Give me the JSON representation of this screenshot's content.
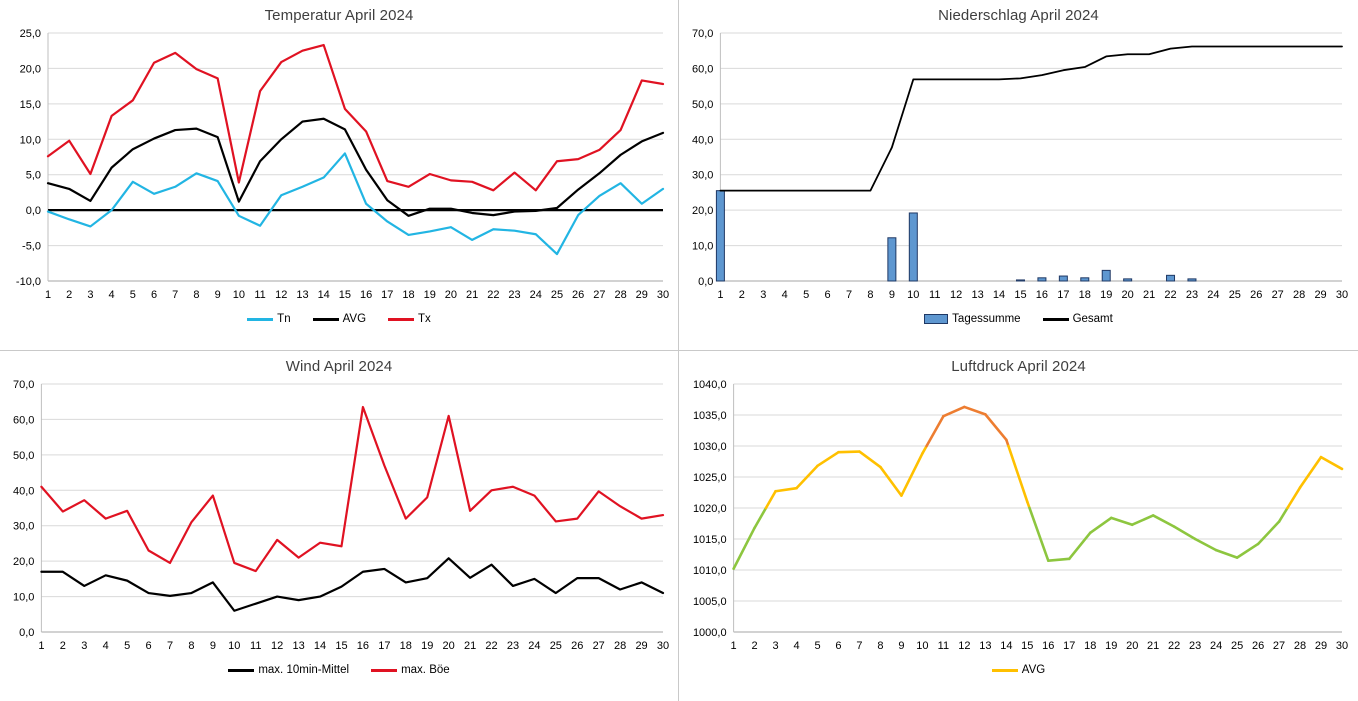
{
  "page": {
    "background": "#FFFFFF",
    "divider_color": "#C9C9C9",
    "grid_color": "#D9D9D9",
    "axis_color": "#A6A6A6",
    "left_axis_color": "#BFBFBF",
    "title_color": "#3F3F3F"
  },
  "chart_data": [
    {
      "type": "line",
      "title": "Temperatur April 2024",
      "xlabel": "",
      "ylabel": "",
      "ylim": [
        -10,
        25
      ],
      "ystep": 5,
      "grid": true,
      "legend_position": "bottom",
      "zero_axis_bold": true,
      "categories": [
        1,
        2,
        3,
        4,
        5,
        6,
        7,
        8,
        9,
        10,
        11,
        12,
        13,
        14,
        15,
        16,
        17,
        18,
        19,
        20,
        21,
        22,
        23,
        24,
        25,
        26,
        27,
        28,
        29,
        30
      ],
      "series": [
        {
          "name": "Tn",
          "kind": "line",
          "color": "#22B5E3",
          "values": [
            -0.2,
            -1.3,
            -2.3,
            0.0,
            4.0,
            2.3,
            3.3,
            5.2,
            4.1,
            -0.8,
            -2.2,
            2.1,
            3.3,
            4.6,
            8.0,
            0.9,
            -1.6,
            -3.5,
            -3.0,
            -2.4,
            -4.2,
            -2.7,
            -2.9,
            -3.4,
            -6.2,
            -0.7,
            2.0,
            3.8,
            0.9,
            3.0
          ]
        },
        {
          "name": "AVG",
          "kind": "line",
          "color": "#000000",
          "values": [
            3.8,
            3.0,
            1.3,
            6.0,
            8.6,
            10.1,
            11.3,
            11.5,
            10.3,
            1.2,
            6.9,
            10.0,
            12.5,
            12.9,
            11.4,
            5.7,
            1.4,
            -0.8,
            0.2,
            0.2,
            -0.4,
            -0.7,
            -0.2,
            -0.1,
            0.3,
            2.9,
            5.2,
            7.8,
            9.7,
            10.9
          ]
        },
        {
          "name": "Tx",
          "kind": "line",
          "color": "#E01222",
          "values": [
            7.6,
            9.8,
            5.1,
            13.3,
            15.5,
            20.8,
            22.2,
            19.9,
            18.6,
            3.9,
            16.8,
            20.9,
            22.5,
            23.3,
            14.3,
            11.1,
            4.1,
            3.3,
            5.1,
            4.2,
            4.0,
            2.8,
            5.3,
            2.8,
            6.9,
            7.2,
            8.5,
            11.3,
            18.3,
            17.8
          ]
        }
      ]
    },
    {
      "type": "bar",
      "title": "Niederschlag April 2024",
      "xlabel": "",
      "ylabel": "",
      "ylim": [
        0,
        70
      ],
      "ystep": 10,
      "grid": true,
      "legend_position": "bottom",
      "categories": [
        1,
        2,
        3,
        4,
        5,
        6,
        7,
        8,
        9,
        10,
        11,
        12,
        13,
        14,
        15,
        16,
        17,
        18,
        19,
        20,
        21,
        22,
        23,
        24,
        25,
        26,
        27,
        28,
        29,
        30
      ],
      "series": [
        {
          "name": "Tagessumme",
          "kind": "bar",
          "color": "#5E97D0",
          "border_color": "#1F3864",
          "values": [
            25.5,
            0,
            0,
            0,
            0,
            0,
            0,
            0,
            12.2,
            19.2,
            0,
            0,
            0,
            0,
            0.3,
            0.9,
            1.4,
            0.9,
            3.0,
            0.6,
            0,
            1.6,
            0.6,
            0,
            0,
            0,
            0,
            0,
            0,
            0
          ]
        },
        {
          "name": "Gesamt",
          "kind": "line",
          "color": "#000000",
          "values": [
            25.5,
            25.5,
            25.5,
            25.5,
            25.5,
            25.5,
            25.5,
            25.5,
            37.7,
            56.9,
            56.9,
            56.9,
            56.9,
            56.9,
            57.2,
            58.1,
            59.5,
            60.4,
            63.4,
            64.0,
            64.0,
            65.6,
            66.2,
            66.2,
            66.2,
            66.2,
            66.2,
            66.2,
            66.2,
            66.2
          ]
        }
      ]
    },
    {
      "type": "line",
      "title": "Wind April 2024",
      "xlabel": "",
      "ylabel": "",
      "ylim": [
        0,
        70
      ],
      "ystep": 10,
      "grid": true,
      "legend_position": "bottom",
      "categories": [
        1,
        2,
        3,
        4,
        5,
        6,
        7,
        8,
        9,
        10,
        11,
        12,
        13,
        14,
        15,
        16,
        17,
        18,
        19,
        20,
        21,
        22,
        23,
        24,
        25,
        26,
        27,
        28,
        29,
        30
      ],
      "series": [
        {
          "name": "max. 10min-Mittel",
          "kind": "line",
          "color": "#000000",
          "values": [
            17.0,
            17.0,
            13.0,
            16.0,
            14.5,
            11.0,
            10.2,
            11.0,
            14.0,
            6.0,
            8.0,
            10.0,
            9.0,
            10.0,
            12.8,
            17.0,
            17.8,
            14.0,
            15.2,
            20.8,
            15.3,
            19.0,
            13.0,
            15.0,
            11.0,
            15.2,
            15.2,
            12.0,
            14.0,
            11.0
          ]
        },
        {
          "name": "max. Böe",
          "kind": "line",
          "color": "#E01222",
          "values": [
            41.0,
            34.0,
            37.2,
            32.0,
            34.2,
            23.0,
            19.5,
            31.0,
            38.5,
            19.5,
            17.2,
            26.0,
            21.0,
            25.2,
            24.2,
            63.5,
            47.0,
            32.0,
            38.0,
            61.0,
            34.2,
            40.0,
            41.0,
            38.5,
            31.2,
            32.0,
            39.7,
            35.5,
            32.0,
            33.0
          ]
        }
      ]
    },
    {
      "type": "line",
      "title": "Luftdruck April 2024",
      "xlabel": "",
      "ylabel": "",
      "ylim": [
        1000,
        1040
      ],
      "ystep": 5,
      "grid": true,
      "legend_position": "bottom",
      "categories": [
        1,
        2,
        3,
        4,
        5,
        6,
        7,
        8,
        9,
        10,
        11,
        12,
        13,
        14,
        15,
        16,
        17,
        18,
        19,
        20,
        21,
        22,
        23,
        24,
        25,
        26,
        27,
        28,
        29,
        30
      ],
      "series": [
        {
          "name": "AVG",
          "kind": "line",
          "color": "#FFC000",
          "value_color_bands": {
            "thresholds": [
              1020,
              1030
            ],
            "colors": [
              "#8DC63F",
              "#FFC000",
              "#ED7D31"
            ]
          },
          "values": [
            1010.2,
            1016.8,
            1022.7,
            1023.2,
            1026.8,
            1029.0,
            1029.1,
            1026.6,
            1022.0,
            1028.8,
            1034.8,
            1036.3,
            1035.1,
            1031.0,
            1021.0,
            1011.5,
            1011.8,
            1016.0,
            1018.4,
            1017.3,
            1018.8,
            1017.0,
            1015.0,
            1013.2,
            1012.0,
            1014.2,
            1017.8,
            1023.3,
            1028.2,
            1026.3
          ]
        }
      ]
    }
  ]
}
